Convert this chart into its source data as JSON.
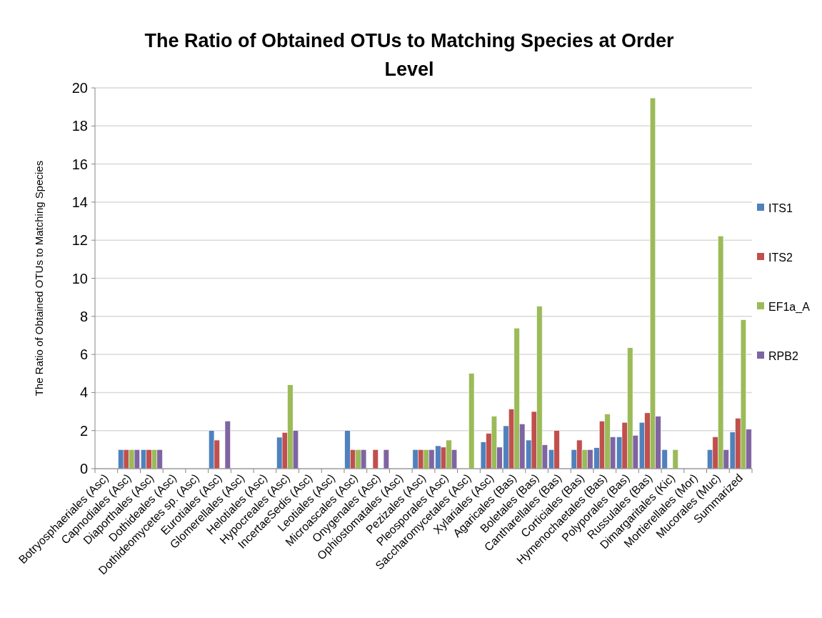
{
  "chart_data": {
    "type": "bar",
    "title": "The Ratio of Obtained OTUs to Matching Species at Order Level",
    "ylabel": "The Ratio of Obtained OTUs to Matching Species",
    "categories": [
      "Botryosphaeriales (Asc)",
      "Capnodiales (Asc)",
      "Diaporthales (Asc)",
      "Dothideales (Asc)",
      "Dothideomycetes sp. (Asc)",
      "Eurotiales (Asc)",
      "Glomerellales (Asc)",
      "Helotiales (Asc)",
      "Hypocreales (Asc)",
      "IncertaeSedis (Asc)",
      "Leotiales (Asc)",
      "Microascales (Asc)",
      "Onygenales (Asc)",
      "Ophiostomatales (Asc)",
      "Pezizales (Asc)",
      "Pleosporales (Asc)",
      "Saccharomycetales (Asc)",
      "Xylariales (Asc)",
      "Agaricales (Bas)",
      "Boletales (Bas)",
      "Cantharellales (Bas)",
      "Corticiales (Bas)",
      "Hymenochaetales (Bas)",
      "Polyporales (Bas)",
      "Russulales (Bas)",
      "Dimargaritales (Kic)",
      "Mortierellales (Mor)",
      "Mucorales (Muc)",
      "Summarized"
    ],
    "series": [
      {
        "name": "ITS1",
        "color": "#4f81bd",
        "values": [
          null,
          1,
          1,
          null,
          null,
          2,
          null,
          null,
          1.65,
          null,
          null,
          2,
          null,
          null,
          1,
          1.2,
          null,
          1.4,
          2.25,
          1.5,
          1,
          1,
          1.1,
          1.67,
          2.43,
          1,
          null,
          1,
          1.92
        ]
      },
      {
        "name": "ITS2",
        "color": "#c0504d",
        "values": [
          null,
          1,
          1,
          null,
          null,
          1.5,
          null,
          null,
          1.9,
          null,
          null,
          1,
          1,
          null,
          1,
          1.13,
          null,
          1.85,
          3.13,
          3,
          2,
          1.5,
          2.5,
          2.43,
          2.93,
          null,
          null,
          1.67,
          2.65
        ]
      },
      {
        "name": "EF1a_A",
        "color": "#9bbb59",
        "values": [
          null,
          1,
          1,
          null,
          null,
          null,
          null,
          null,
          4.4,
          null,
          null,
          1,
          null,
          null,
          1,
          1.5,
          5,
          2.75,
          7.38,
          8.53,
          null,
          1,
          2.87,
          6.35,
          19.47,
          1,
          null,
          12.22,
          7.82
        ]
      },
      {
        "name": "RPB2",
        "color": "#8064a2",
        "values": [
          null,
          1,
          1,
          null,
          null,
          2.5,
          null,
          null,
          2,
          null,
          null,
          1,
          1,
          null,
          1,
          1,
          null,
          1.13,
          2.35,
          1.25,
          null,
          1,
          1.67,
          1.75,
          2.75,
          null,
          null,
          1,
          2.07
        ]
      }
    ],
    "ylim": [
      0,
      20
    ],
    "yticks": [
      0,
      2,
      4,
      6,
      8,
      10,
      12,
      14,
      16,
      18,
      20
    ],
    "grid": "y",
    "legend": "right"
  }
}
